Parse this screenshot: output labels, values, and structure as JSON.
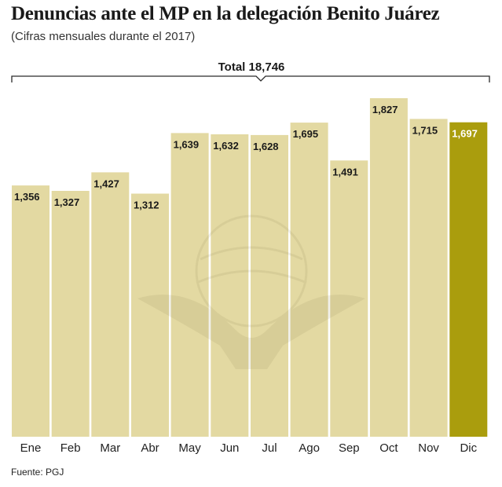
{
  "chart_data": {
    "type": "bar",
    "title": "Denuncias ante el MP en la delegación Benito Juárez",
    "subtitle": "(Cifras mensuales durante el 2017)",
    "total_label": "Total 18,746",
    "categories": [
      "Ene",
      "Feb",
      "Mar",
      "Abr",
      "May",
      "Jun",
      "Jul",
      "Ago",
      "Sep",
      "Oct",
      "Nov",
      "Dic"
    ],
    "values": [
      1356,
      1327,
      1427,
      1312,
      1639,
      1632,
      1628,
      1695,
      1491,
      1827,
      1715,
      1697
    ],
    "value_labels": [
      "1,356",
      "1,327",
      "1,427",
      "1,312",
      "1,639",
      "1,632",
      "1,628",
      "1,695",
      "1,491",
      "1,827",
      "1,715",
      "1,697"
    ],
    "ylim": [
      0,
      1827
    ],
    "grid": false,
    "colors": {
      "bar": "#e3d9a2",
      "highlight": "#aa9d0d"
    },
    "highlight_category": "Dic",
    "source": "Fuente: PGJ"
  }
}
